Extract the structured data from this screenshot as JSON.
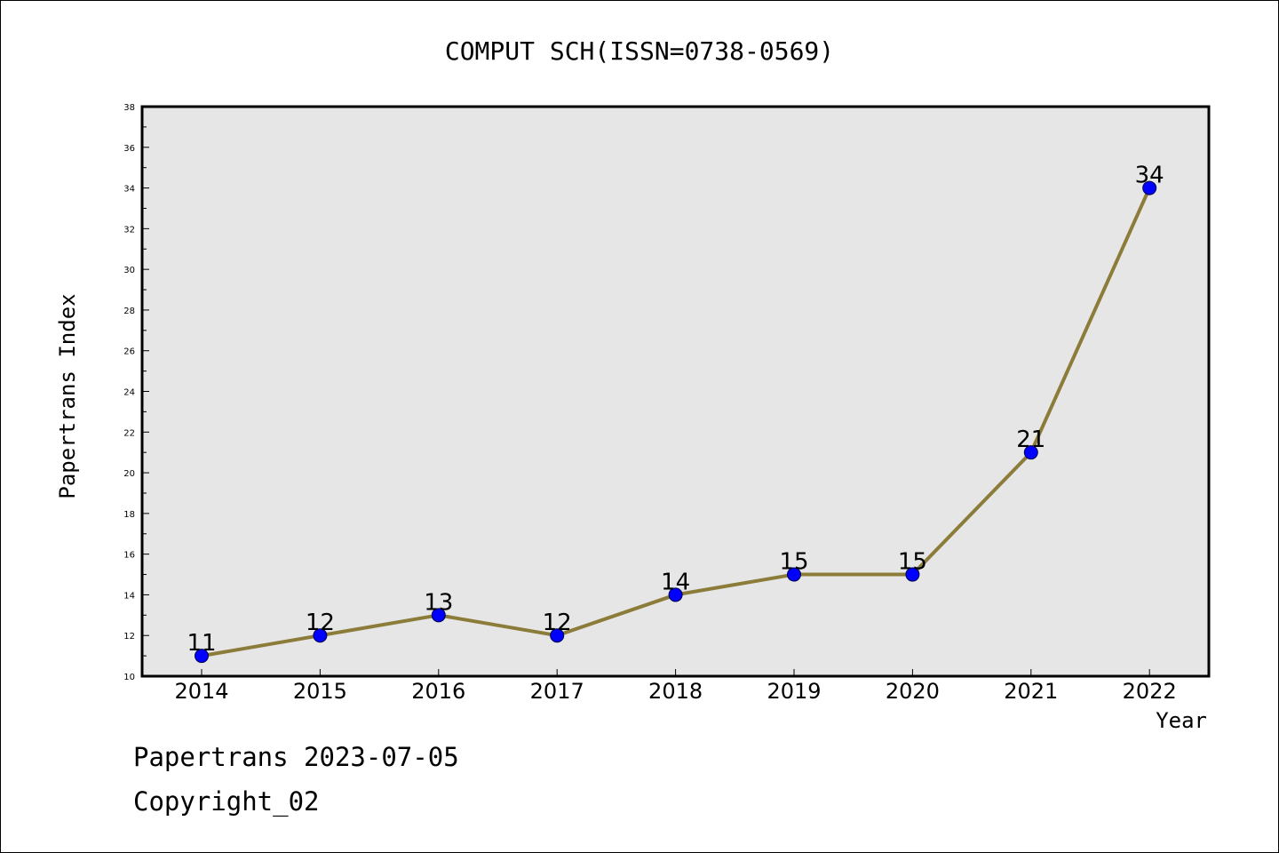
{
  "colors": {
    "plot_background": "#e6e6e6",
    "line": "#8c7c3a",
    "marker_fill": "#0000ff",
    "marker_edge": "#00004d",
    "axis": "#000000"
  },
  "footer": {
    "line1": "Papertrans 2023-07-05",
    "line2": "Copyright_02"
  },
  "chart_data": {
    "type": "line",
    "title": "COMPUT SCH(ISSN=0738-0569)",
    "xlabel": "Year",
    "ylabel": "Papertrans Index",
    "x": [
      "2014",
      "2015",
      "2016",
      "2017",
      "2018",
      "2019",
      "2020",
      "2021",
      "2022"
    ],
    "series": [
      {
        "values": [
          11,
          12,
          13,
          12,
          14,
          15,
          15,
          21,
          34
        ]
      }
    ],
    "data_labels": [
      "11",
      "12",
      "13",
      "12",
      "14",
      "15",
      "15",
      "21",
      "34"
    ],
    "ylim": [
      10,
      38
    ],
    "yticks": [
      10,
      12,
      14,
      16,
      18,
      20,
      22,
      24,
      26,
      28,
      30,
      32,
      34,
      36,
      38
    ],
    "grid": false,
    "legend": "none"
  }
}
